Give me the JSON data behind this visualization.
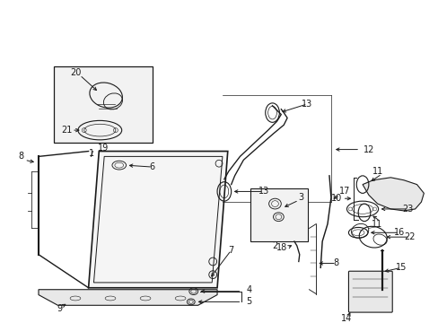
{
  "fig_width": 4.89,
  "fig_height": 3.6,
  "dpi": 100,
  "bg_color": "#ffffff",
  "line_color": "#1a1a1a",
  "label_fontsize": 7.0,
  "arrow_lw": 0.7,
  "part_lw": 0.8,
  "inset_bg": "#f0f0f0"
}
